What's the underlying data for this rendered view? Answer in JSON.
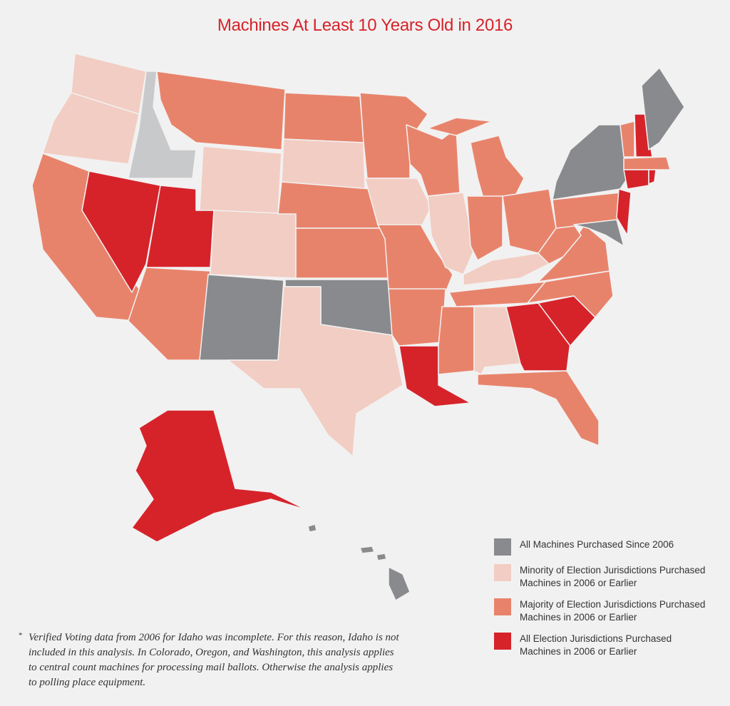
{
  "title": "Machines At Least 10 Years Old in 2016",
  "legend": [
    {
      "label": "All Machines Purchased Since 2006",
      "color": "#898a8d"
    },
    {
      "label": "Minority of Election Jurisdictions Purchased Machines in 2006 or Earlier",
      "color": "#f2cdc3"
    },
    {
      "label": "Majority of Election Jurisdictions Purchased Machines in 2006 or Earlier",
      "color": "#e8836b"
    },
    {
      "label": "All Election Jurisdictions Purchased Machines in 2006 or Earlier",
      "color": "#d6232a"
    }
  ],
  "footnote": {
    "marker": "*",
    "text": "Verified Voting data from 2006 for Idaho was incomplete. For this reason, Idaho is not included in this analysis. In Colorado, Oregon, and Washington, this analysis applies to central count machines for processing mail ballots. Otherwise the analysis applies to polling place equipment."
  }
}
